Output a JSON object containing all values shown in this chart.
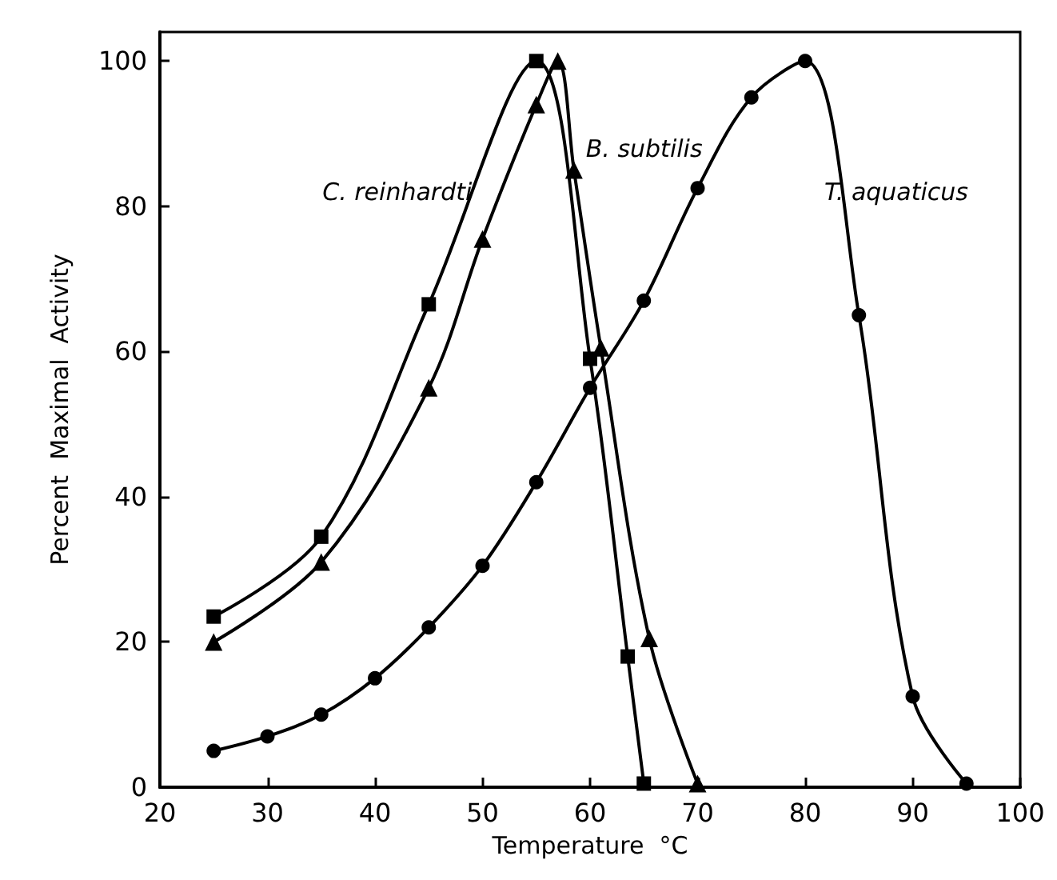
{
  "chart_data": {
    "type": "line",
    "xlabel": "Temperature  °C",
    "ylabel": "Percent  Maximal  Activity",
    "xlim": [
      20,
      100
    ],
    "ylim": [
      0,
      104
    ],
    "xticks": [
      20,
      30,
      40,
      50,
      60,
      70,
      80,
      90,
      100
    ],
    "yticks": [
      0,
      20,
      40,
      60,
      80,
      100
    ],
    "grid": false,
    "line_style": "solid",
    "series": [
      {
        "name": "C. reinhardti",
        "color": "#000000",
        "marker": "square",
        "x": [
          25,
          35,
          45,
          55,
          60,
          63.5,
          65
        ],
        "values": [
          23.5,
          34.5,
          66.5,
          100,
          59,
          18,
          0.5
        ]
      },
      {
        "name": "B. subtilis",
        "color": "#000000",
        "marker": "triangle",
        "x": [
          25,
          35,
          45,
          50,
          55,
          57,
          58.5,
          61,
          65.5,
          70
        ],
        "values": [
          20,
          31,
          55,
          75.5,
          94,
          100,
          85,
          60.5,
          20.5,
          0.5
        ]
      },
      {
        "name": "T. aquaticus",
        "color": "#000000",
        "marker": "circle",
        "x": [
          25,
          30,
          35,
          40,
          45,
          50,
          55,
          60,
          65,
          70,
          75,
          80,
          85,
          90,
          95
        ],
        "values": [
          5,
          7,
          10,
          15,
          22,
          30.5,
          42,
          55,
          67,
          82.5,
          95,
          100,
          65,
          12.5,
          0.5
        ]
      }
    ]
  }
}
